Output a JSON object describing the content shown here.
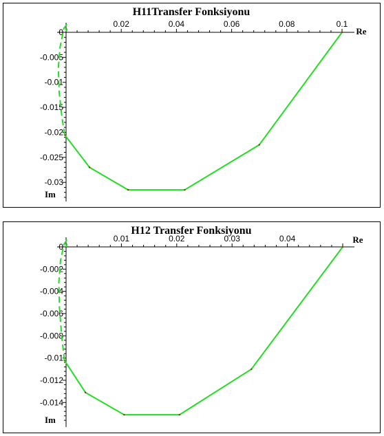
{
  "chart_data": [
    {
      "type": "line",
      "title": "H11Transfer Fonksiyonu",
      "xlabel": "Re",
      "ylabel": "Im",
      "xlim": [
        0,
        0.1
      ],
      "ylim": [
        -0.033,
        0.002
      ],
      "xticks": [
        "0.02",
        "0.04",
        "0.06",
        "0.08",
        "0.1"
      ],
      "xtick_values": [
        0.02,
        0.04,
        0.06,
        0.08,
        0.1
      ],
      "yticks": [
        "0",
        "-0.005",
        "-0.01",
        "-0.015",
        "-0.02",
        "-0.025",
        "-0.03"
      ],
      "ytick_values": [
        0,
        -0.005,
        -0.01,
        -0.015,
        -0.02,
        -0.025,
        -0.03
      ],
      "color": "#22dd22",
      "series": [
        {
          "style": "solid",
          "points": [
            [
              0.1,
              0.0
            ],
            [
              0.07,
              -0.0225
            ],
            [
              0.043,
              -0.0315
            ],
            [
              0.0225,
              -0.0315
            ],
            [
              0.0085,
              -0.027
            ],
            [
              -0.0005,
              -0.0205
            ]
          ]
        },
        {
          "style": "dashed",
          "points": [
            [
              -0.0005,
              -0.0205
            ],
            [
              -0.0015,
              -0.017
            ],
            [
              -0.0025,
              -0.012
            ],
            [
              -0.0028,
              -0.007
            ],
            [
              -0.0022,
              -0.003
            ],
            [
              -0.0008,
              0.0008
            ],
            [
              0.0002,
              0.0015
            ],
            [
              0.0004,
              0.001
            ],
            [
              0.0001,
              0.0002
            ]
          ]
        }
      ]
    },
    {
      "type": "line",
      "title": "H12 Transfer Fonksiyonu",
      "xlabel": "Re",
      "ylabel": "Im",
      "xlim": [
        0,
        0.05
      ],
      "ylim": [
        -0.0159,
        0.0008
      ],
      "xticks": [
        "0.01",
        "0.02",
        "0.03",
        "0.04"
      ],
      "xtick_values": [
        0.01,
        0.02,
        0.03,
        0.04
      ],
      "yticks": [
        "0",
        "-0.002",
        "-0.004",
        "-0.006",
        "-0.008",
        "-0.01",
        "-0.012",
        "-0.014"
      ],
      "ytick_values": [
        0,
        -0.002,
        -0.004,
        -0.006,
        -0.008,
        -0.01,
        -0.012,
        -0.014
      ],
      "color": "#22dd22",
      "series": [
        {
          "style": "solid",
          "points": [
            [
              0.05,
              0.0
            ],
            [
              0.0335,
              -0.011
            ],
            [
              0.0205,
              -0.0151
            ],
            [
              0.0105,
              -0.0151
            ],
            [
              0.0035,
              -0.0131
            ],
            [
              -0.0003,
              -0.0102
            ]
          ]
        },
        {
          "style": "dashed",
          "points": [
            [
              -0.0003,
              -0.0102
            ],
            [
              -0.0008,
              -0.008
            ],
            [
              -0.0012,
              -0.0055
            ],
            [
              -0.0013,
              -0.0032
            ],
            [
              -0.001,
              -0.0012
            ],
            [
              -0.0004,
              0.0002
            ],
            [
              0.0001,
              0.0006
            ],
            [
              0.0002,
              0.0003
            ],
            [
              0.0,
              0.0
            ]
          ]
        }
      ]
    }
  ]
}
